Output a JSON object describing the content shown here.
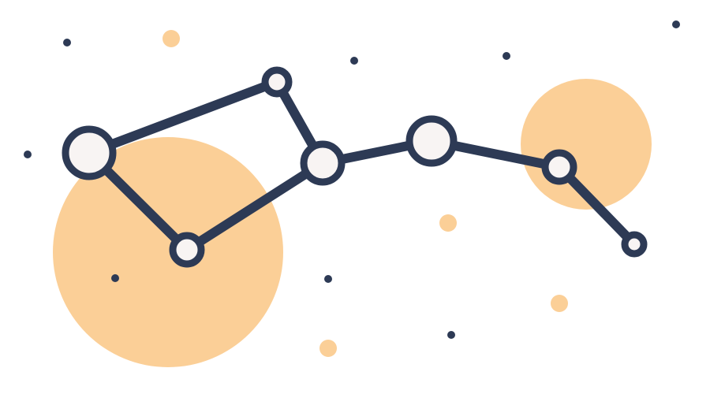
{
  "illustration": {
    "subject": "constellation-illustration",
    "colors": {
      "background": "#ffffff",
      "navy": "#2d3a55",
      "peach": "#fbcf97",
      "node_fill": "#f8f4f3"
    }
  }
}
